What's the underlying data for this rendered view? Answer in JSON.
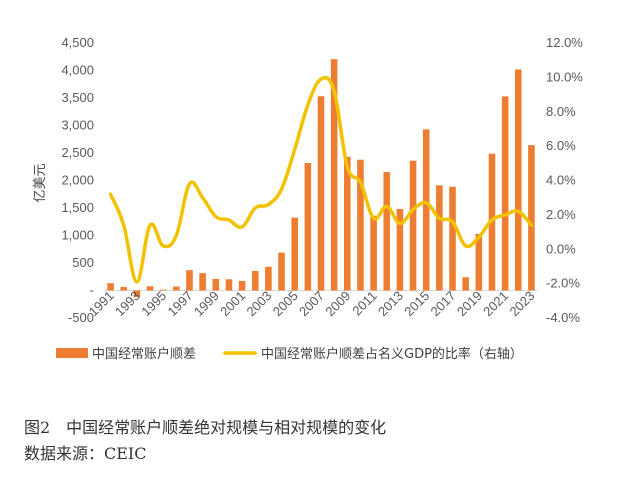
{
  "chart_data": {
    "type": "bar",
    "ylabel": "亿美元",
    "ylim": [
      -500,
      4500
    ],
    "y2lim": [
      -4.0,
      12.0
    ],
    "y_ticks": [
      "-500",
      "-",
      "500",
      "1,000",
      "1,500",
      "2,000",
      "2,500",
      "3,000",
      "3,500",
      "4,000",
      "4,500"
    ],
    "y2_ticks": [
      "-4.0%",
      "-2.0%",
      "0.0%",
      "2.0%",
      "4.0%",
      "6.0%",
      "8.0%",
      "10.0%",
      "12.0%"
    ],
    "x_tick_labels": [
      "1991",
      "1993",
      "1995",
      "1997",
      "1999",
      "2001",
      "2003",
      "2005",
      "2007",
      "2009",
      "2011",
      "2013",
      "2015",
      "2017",
      "2019",
      "2021",
      "2023"
    ],
    "categories": [
      "1991",
      "1992",
      "1993",
      "1994",
      "1995",
      "1996",
      "1997",
      "1998",
      "1999",
      "2000",
      "2001",
      "2002",
      "2003",
      "2004",
      "2005",
      "2006",
      "2007",
      "2008",
      "2009",
      "2010",
      "2011",
      "2012",
      "2013",
      "2014",
      "2015",
      "2016",
      "2017",
      "2018",
      "2019",
      "2020",
      "2021",
      "2022",
      "2023"
    ],
    "series": [
      {
        "name": "中国经常账户顺差",
        "type": "bar",
        "axis": "left",
        "color": "#ED7D31",
        "values": [
          133,
          64,
          -119,
          77,
          16,
          72,
          370,
          315,
          211,
          204,
          174,
          354,
          431,
          689,
          1324,
          2318,
          3532,
          4206,
          2433,
          2378,
          1361,
          2154,
          1482,
          2360,
          2930,
          1913,
          1887,
          241,
          1029,
          2488,
          3529,
          4019,
          2642
        ]
      },
      {
        "name": "中国经常账户顺差占名义GDP的比率（右轴）",
        "type": "line",
        "axis": "right",
        "color": "#F2C200",
        "values": [
          3.2,
          1.4,
          -1.9,
          1.4,
          0.2,
          0.8,
          3.8,
          3.0,
          1.9,
          1.7,
          1.3,
          2.4,
          2.6,
          3.5,
          5.8,
          8.4,
          9.9,
          9.2,
          4.8,
          3.9,
          1.8,
          2.5,
          1.5,
          2.3,
          2.7,
          1.8,
          1.6,
          0.2,
          0.7,
          1.7,
          2.0,
          2.2,
          1.4
        ]
      }
    ]
  },
  "caption": {
    "title": "图2　中国经常账户顺差绝对规模与相对规模的变化",
    "source": "数据来源：CEIC"
  }
}
